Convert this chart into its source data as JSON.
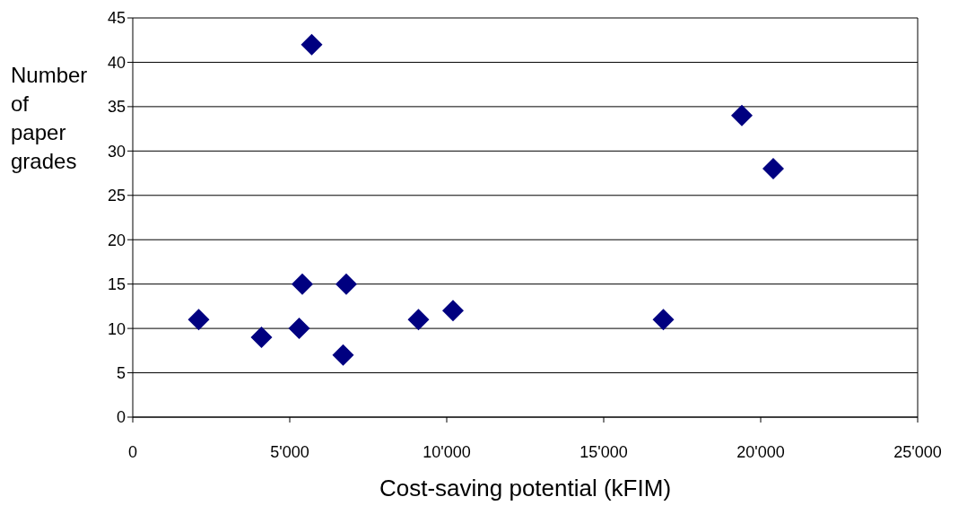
{
  "chart_data": {
    "type": "scatter",
    "xlabel": "Cost-saving potential (kFIM)",
    "ylabel": "Number of paper grades",
    "x": [
      2100,
      4100,
      5300,
      5400,
      5700,
      6700,
      6800,
      9100,
      10200,
      16900,
      19400,
      20400
    ],
    "series": [
      {
        "color": "#000080",
        "values": [
          11,
          9,
          10,
          15,
          42,
          7,
          15,
          11,
          12,
          11,
          34,
          28
        ]
      }
    ],
    "xlim": [
      0,
      25000
    ],
    "xticks": [
      0,
      {
        "value": 5000,
        "label": "5'000"
      },
      {
        "value": 10000,
        "label": "10'000"
      },
      {
        "value": 15000,
        "label": "15'000"
      },
      {
        "value": 20000,
        "label": "20'000"
      },
      {
        "value": 25000,
        "label": "25'000"
      }
    ],
    "ylim": [
      0,
      45
    ],
    "yticks": [
      0,
      5,
      10,
      15,
      20,
      25,
      30,
      35,
      40,
      45
    ],
    "grid": "y",
    "marker": "diamond"
  }
}
